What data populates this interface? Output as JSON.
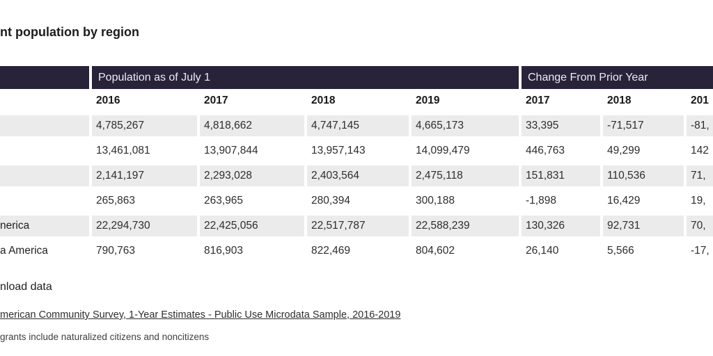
{
  "title": "nt population by region",
  "chart_data": {
    "type": "table",
    "title": "nt population by region",
    "column_groups": [
      {
        "label": "Population as of July 1",
        "span": 4
      },
      {
        "label": "Change From Prior Year",
        "span": 3
      }
    ],
    "columns": [
      "2016",
      "2017",
      "2018",
      "2019",
      "2017",
      "2018",
      "201"
    ],
    "rows": [
      {
        "label": "",
        "values": [
          "4,785,267",
          "4,818,662",
          "4,747,145",
          "4,665,173",
          "33,395",
          "-71,517",
          "-81,"
        ]
      },
      {
        "label": "",
        "values": [
          "13,461,081",
          "13,907,844",
          "13,957,143",
          "14,099,479",
          "446,763",
          "49,299",
          "142"
        ]
      },
      {
        "label": "",
        "values": [
          "2,141,197",
          "2,293,028",
          "2,403,564",
          "2,475,118",
          "151,831",
          "110,536",
          "71,"
        ]
      },
      {
        "label": "",
        "values": [
          "265,863",
          "263,965",
          "280,394",
          "300,188",
          "-1,898",
          "16,429",
          "19,"
        ]
      },
      {
        "label": "nerica",
        "values": [
          "22,294,730",
          "22,425,056",
          "22,517,787",
          "22,588,239",
          "130,326",
          "92,731",
          "70,"
        ]
      },
      {
        "label": "a America",
        "values": [
          "790,763",
          "816,903",
          "822,469",
          "804,602",
          "26,140",
          "5,566",
          "-17,"
        ]
      }
    ]
  },
  "footer": {
    "download_label": "nload data",
    "source_link_text": "merican Community Survey, 1-Year Estimates - Public Use Microdata Sample, 2016-2019",
    "note": "grants include naturalized citizens and noncitizens"
  },
  "colors": {
    "header_band": "#282339",
    "header_band_text": "#edecf3",
    "row_stripe": "#ECEBEC",
    "body_text": "#2d2d2d"
  }
}
